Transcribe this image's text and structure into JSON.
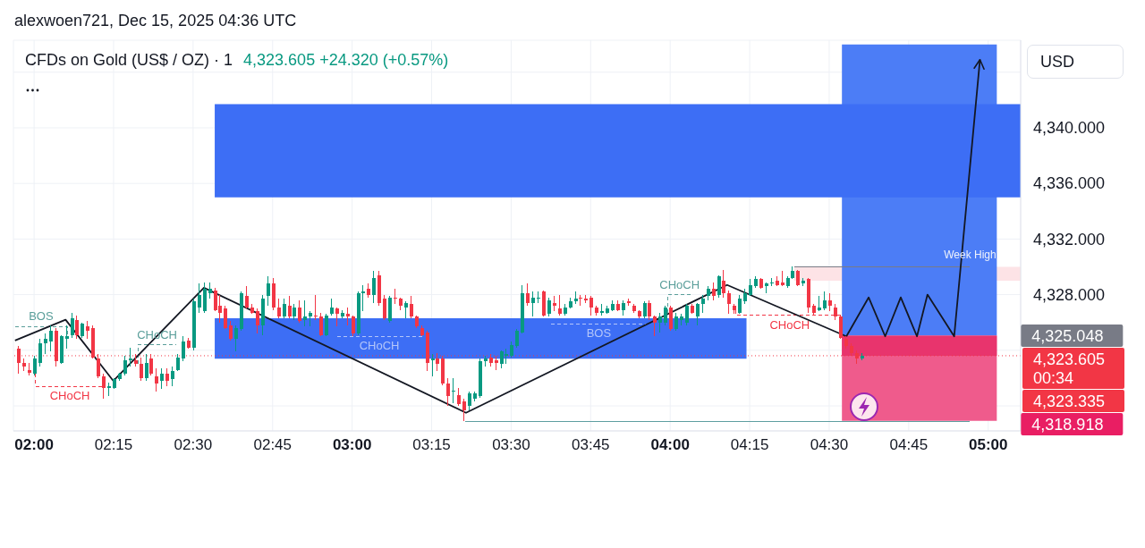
{
  "chart_data": {
    "type": "candlestick",
    "title": "CFDs on Gold (US$ / OZ) · 1",
    "subtitle": "4,323.605 +24.320 (+0.57%)",
    "ylabel": "USD",
    "annotations": [
      "alexwoen721, Dec 15, 2025 04:36 UTC",
      {
        "text": "4,325.048",
        "x": 5.027,
        "y": 4325.048
      },
      "4,323.335",
      {
        "text": "4,318.918",
        "x": 5.027,
        "y": 4318.918
      }
    ],
    "x": [
      1.95,
      1.9667,
      1.9833,
      2,
      2.0167,
      2.0333,
      2.05,
      2.0667,
      2.0833,
      2.1,
      2.1167,
      2.1333,
      2.15,
      2.1667,
      2.1833,
      2.2,
      2.2167,
      2.2333,
      2.25,
      2.2667,
      2.2833,
      2.3,
      2.3167,
      2.3333,
      2.35,
      2.3667,
      2.3833,
      2.4,
      2.4167,
      2.4333,
      2.45,
      2.4667,
      2.4833,
      2.5,
      2.5167,
      2.5333,
      2.55,
      2.5667,
      2.5833,
      2.6,
      2.6167,
      2.6333,
      2.65,
      2.6667,
      2.6833,
      2.7,
      2.7167,
      2.7333,
      2.75,
      2.7667,
      2.7833,
      2.8,
      2.8167,
      2.8333,
      2.85,
      2.8667,
      2.8833,
      2.9,
      2.9167,
      2.9333,
      2.95,
      2.9667,
      2.9833,
      3,
      3.0167,
      3.0333,
      3.05,
      3.0667,
      3.0833,
      3.1,
      3.1167,
      3.1333,
      3.15,
      3.1667,
      3.1833,
      3.2,
      3.2167,
      3.2333,
      3.25,
      3.2667,
      3.2833,
      3.3,
      3.3167,
      3.3333,
      3.35,
      3.3667,
      3.3833,
      3.4,
      3.4167,
      3.4333,
      3.45,
      3.4667,
      3.4833,
      3.5,
      3.5167,
      3.5333,
      3.55,
      3.5667,
      3.5833,
      3.6,
      3.6167,
      3.6333,
      3.65,
      3.6667,
      3.6833,
      3.7,
      3.7167,
      3.7333,
      3.75,
      3.7667,
      3.7833,
      3.8,
      3.8167,
      3.8333,
      3.85,
      3.8667,
      3.8833,
      3.9,
      3.9167,
      3.9333,
      3.95,
      3.9667,
      3.9833,
      4,
      4.0167,
      4.0333,
      4.05,
      4.0667,
      4.0833,
      4.1,
      4.1167,
      4.1333,
      4.15,
      4.1667,
      4.1833,
      4.2,
      4.2167,
      4.2333,
      4.25,
      4.2667,
      4.2833,
      4.3,
      4.3167,
      4.3333,
      4.35,
      4.3667,
      4.3833,
      4.4,
      4.4167,
      4.4333,
      4.45,
      4.4667,
      4.4833,
      4.5,
      4.5167,
      4.5333,
      4.55,
      4.5667,
      4.5833,
      4.6
    ],
    "ohlc": [
      [
        4324.1,
        4324.3,
        4322.3,
        4323.1
      ],
      [
        4323.1,
        4323.4,
        4322.5,
        4322.8
      ],
      [
        4322.6,
        4323.1,
        4322.2,
        4322.4
      ],
      [
        4322.3,
        4323.6,
        4322.2,
        4323.4
      ],
      [
        4323.1,
        4324.8,
        4322.8,
        4324.5
      ],
      [
        4324.5,
        4325.2,
        4323.7,
        4324.8
      ],
      [
        4324.6,
        4325.8,
        4323.9,
        4325.4
      ],
      [
        4325.4,
        4325.6,
        4322.8,
        4323.2
      ],
      [
        4323.1,
        4325.1,
        4323.0,
        4325.0
      ],
      [
        4324.8,
        4325.8,
        4324.1,
        4325.0
      ],
      [
        4325.1,
        4326.7,
        4324.9,
        4326.3
      ],
      [
        4326.2,
        4326.5,
        4324.8,
        4325.1
      ],
      [
        4325.0,
        4326.0,
        4324.9,
        4325.9
      ],
      [
        4325.7,
        4326.1,
        4324.8,
        4325.4
      ],
      [
        4325.6,
        4325.8,
        4323.4,
        4323.5
      ],
      [
        4323.4,
        4323.7,
        4322.0,
        4322.1
      ],
      [
        4322.1,
        4322.3,
        4320.5,
        4321.3
      ],
      [
        4321.3,
        4321.7,
        4320.7,
        4321.4
      ],
      [
        4321.3,
        4322.0,
        4321.2,
        4321.9
      ],
      [
        4321.9,
        4322.4,
        4321.8,
        4322.3
      ],
      [
        4322.3,
        4323.6,
        4322.2,
        4323.3
      ],
      [
        4323.3,
        4324.2,
        4322.8,
        4323.4
      ],
      [
        4323.3,
        4323.7,
        4322.8,
        4323.0
      ],
      [
        4323.0,
        4323.5,
        4321.8,
        4322.0
      ],
      [
        4322.0,
        4323.7,
        4321.8,
        4323.1
      ],
      [
        4323.4,
        4323.7,
        4322.2,
        4322.3
      ],
      [
        4322.1,
        4322.7,
        4321.0,
        4321.6
      ],
      [
        4321.8,
        4322.7,
        4321.2,
        4322.3
      ],
      [
        4322.3,
        4322.7,
        4321.4,
        4321.8
      ],
      [
        4321.9,
        4322.8,
        4321.4,
        4322.5
      ],
      [
        4322.6,
        4323.7,
        4322.5,
        4323.5
      ],
      [
        4323.4,
        4325.0,
        4323.2,
        4324.6
      ],
      [
        4324.7,
        4324.9,
        4324.1,
        4324.2
      ],
      [
        4324.2,
        4327.7,
        4324.0,
        4327.5
      ],
      [
        4327.1,
        4328.8,
        4326.7,
        4328.0
      ],
      [
        4326.8,
        4328.9,
        4326.7,
        4328.4
      ],
      [
        4328.1,
        4328.9,
        4327.7,
        4328.4
      ],
      [
        4328.3,
        4328.5,
        4326.8,
        4326.9
      ],
      [
        4327.2,
        4328.0,
        4326.0,
        4326.7
      ],
      [
        4327.0,
        4327.2,
        4325.5,
        4325.6
      ],
      [
        4325.8,
        4326.1,
        4324.7,
        4324.8
      ],
      [
        4324.8,
        4325.8,
        4323.9,
        4325.6
      ],
      [
        4325.5,
        4328.2,
        4325.4,
        4328.1
      ],
      [
        4327.9,
        4328.6,
        4327.0,
        4327.1
      ],
      [
        4327.1,
        4327.3,
        4326.6,
        4326.7
      ],
      [
        4326.8,
        4327.0,
        4325.2,
        4325.8
      ],
      [
        4325.8,
        4328.0,
        4325.1,
        4327.7
      ],
      [
        4327.9,
        4329.3,
        4327.2,
        4328.8
      ],
      [
        4328.8,
        4329.2,
        4326.9,
        4327.1
      ],
      [
        4327.1,
        4327.7,
        4326.3,
        4326.4
      ],
      [
        4326.4,
        4327.7,
        4326.3,
        4327.3
      ],
      [
        4327.2,
        4327.9,
        4326.3,
        4326.4
      ],
      [
        4326.4,
        4327.3,
        4326.2,
        4327.1
      ],
      [
        4327.1,
        4327.6,
        4326.0,
        4326.1
      ],
      [
        4326.2,
        4327.6,
        4325.7,
        4326.4
      ],
      [
        4326.4,
        4326.8,
        4325.7,
        4326.7
      ],
      [
        4326.5,
        4328.0,
        4326.2,
        4326.4
      ],
      [
        4326.4,
        4326.7,
        4325.0,
        4325.1
      ],
      [
        4325.1,
        4326.6,
        4325.0,
        4326.5
      ],
      [
        4326.6,
        4327.7,
        4326.5,
        4327.1
      ],
      [
        4327.0,
        4327.1,
        4325.7,
        4326.6
      ],
      [
        4326.4,
        4326.9,
        4326.3,
        4326.7
      ],
      [
        4326.6,
        4327.1,
        4325.8,
        4326.4
      ],
      [
        4326.4,
        4326.5,
        4325.0,
        4325.2
      ],
      [
        4325.2,
        4328.2,
        4325.1,
        4328.1
      ],
      [
        4328.1,
        4328.7,
        4326.8,
        4328.2
      ],
      [
        4328.4,
        4328.8,
        4327.8,
        4328.0
      ],
      [
        4328.0,
        4329.7,
        4327.4,
        4329.2
      ],
      [
        4329.4,
        4329.7,
        4327.2,
        4327.4
      ],
      [
        4327.7,
        4328.0,
        4326.2,
        4326.3
      ],
      [
        4326.1,
        4327.9,
        4326.0,
        4327.8
      ],
      [
        4327.8,
        4328.4,
        4327.3,
        4327.7
      ],
      [
        4327.7,
        4327.8,
        4326.9,
        4327.2
      ],
      [
        4327.1,
        4327.5,
        4326.3,
        4327.4
      ],
      [
        4327.3,
        4327.9,
        4326.3,
        4326.4
      ],
      [
        4326.4,
        4326.5,
        4325.6,
        4325.7
      ],
      [
        4325.6,
        4325.8,
        4325.0,
        4325.1
      ],
      [
        4325.3,
        4325.4,
        4322.5,
        4323.1
      ],
      [
        4323.3,
        4323.7,
        4322.1,
        4323.4
      ],
      [
        4323.4,
        4323.8,
        4322.5,
        4323.0
      ],
      [
        4323.4,
        4323.6,
        4321.5,
        4321.6
      ],
      [
        4321.6,
        4322.0,
        4320.0,
        4320.7
      ],
      [
        4321.0,
        4322.0,
        4320.2,
        4321.1
      ],
      [
        4320.8,
        4321.3,
        4320.0,
        4320.1
      ],
      [
        4320.3,
        4320.5,
        4318.9,
        4319.7
      ],
      [
        4320.0,
        4321.0,
        4319.7,
        4320.9
      ],
      [
        4320.5,
        4321.0,
        4320.3,
        4320.9
      ],
      [
        4320.7,
        4323.4,
        4320.6,
        4323.2
      ],
      [
        4323.2,
        4323.6,
        4322.8,
        4323.4
      ],
      [
        4323.5,
        4323.7,
        4322.8,
        4323.1
      ],
      [
        4323.3,
        4323.6,
        4322.6,
        4323.1
      ],
      [
        4323.0,
        4324.0,
        4322.7,
        4323.9
      ],
      [
        4323.6,
        4324.1,
        4323.0,
        4323.7
      ],
      [
        4323.6,
        4324.6,
        4323.5,
        4324.4
      ],
      [
        4324.3,
        4325.5,
        4324.2,
        4325.4
      ],
      [
        4325.3,
        4328.7,
        4325.2,
        4328.1
      ],
      [
        4328.1,
        4328.8,
        4327.2,
        4327.4
      ],
      [
        4327.4,
        4328.2,
        4326.4,
        4327.8
      ],
      [
        4327.7,
        4328.2,
        4327.4,
        4327.8
      ],
      [
        4328.2,
        4328.3,
        4326.4,
        4326.5
      ],
      [
        4326.6,
        4327.8,
        4326.4,
        4327.6
      ],
      [
        4327.4,
        4327.9,
        4326.8,
        4327.2
      ],
      [
        4327.0,
        4328.0,
        4326.5,
        4326.6
      ],
      [
        4326.6,
        4327.3,
        4326.5,
        4327.1
      ],
      [
        4327.1,
        4327.8,
        4327.0,
        4327.5
      ],
      [
        4327.5,
        4328.2,
        4327.3,
        4327.7
      ],
      [
        4327.8,
        4328.0,
        4327.2,
        4327.7
      ],
      [
        4327.7,
        4328.0,
        4327.4,
        4327.6
      ],
      [
        4327.8,
        4327.9,
        4326.5,
        4327.1
      ],
      [
        4327.1,
        4327.2,
        4326.5,
        4326.7
      ],
      [
        4326.7,
        4327.3,
        4326.5,
        4326.8
      ],
      [
        4326.7,
        4327.2,
        4326.6,
        4327.0
      ],
      [
        4326.9,
        4327.6,
        4326.8,
        4327.3
      ],
      [
        4327.3,
        4327.6,
        4326.8,
        4326.9
      ],
      [
        4326.9,
        4327.6,
        4326.5,
        4327.4
      ],
      [
        4327.5,
        4327.7,
        4327.2,
        4327.4
      ],
      [
        4327.2,
        4327.3,
        4326.7,
        4326.8
      ],
      [
        4326.8,
        4326.9,
        4326.3,
        4326.4
      ],
      [
        4326.4,
        4327.5,
        4326.3,
        4327.4
      ],
      [
        4327.4,
        4327.6,
        4326.2,
        4326.4
      ],
      [
        4326.4,
        4326.5,
        4325.0,
        4326.0
      ],
      [
        4326.0,
        4326.7,
        4325.3,
        4326.4
      ],
      [
        4326.0,
        4327.2,
        4325.8,
        4327.1
      ],
      [
        4327.1,
        4327.2,
        4325.4,
        4325.5
      ],
      [
        4325.5,
        4326.7,
        4325.4,
        4326.4
      ],
      [
        4326.2,
        4326.6,
        4325.8,
        4326.4
      ],
      [
        4326.0,
        4327.3,
        4325.8,
        4327.2
      ],
      [
        4327.2,
        4327.3,
        4326.6,
        4326.7
      ],
      [
        4326.4,
        4327.4,
        4325.8,
        4327.3
      ],
      [
        4327.3,
        4328.0,
        4326.7,
        4327.7
      ],
      [
        4327.9,
        4328.6,
        4327.6,
        4328.4
      ],
      [
        4328.4,
        4328.9,
        4327.6,
        4327.9
      ],
      [
        4328.0,
        4329.4,
        4327.8,
        4329.3
      ],
      [
        4329.0,
        4329.8,
        4327.8,
        4328.1
      ],
      [
        4328.1,
        4328.3,
        4326.6,
        4327.3
      ],
      [
        4327.2,
        4327.3,
        4326.6,
        4326.9
      ],
      [
        4326.7,
        4328.0,
        4326.6,
        4327.7
      ],
      [
        4327.5,
        4328.4,
        4327.3,
        4328.1
      ],
      [
        4328.0,
        4329.1,
        4327.9,
        4328.7
      ],
      [
        4328.6,
        4329.3,
        4328.5,
        4329.1
      ],
      [
        4329.1,
        4329.2,
        4328.4,
        4328.5
      ],
      [
        4328.6,
        4328.9,
        4328.1,
        4328.8
      ],
      [
        4328.8,
        4329.2,
        4328.6,
        4328.9
      ],
      [
        4329.0,
        4329.3,
        4328.6,
        4328.7
      ],
      [
        4328.9,
        4329.7,
        4328.6,
        4328.7
      ],
      [
        4328.6,
        4329.3,
        4328.5,
        4329.2
      ],
      [
        4329.2,
        4330.0,
        4329.1,
        4329.7
      ],
      [
        4329.7,
        4329.8,
        4328.6,
        4328.7
      ],
      [
        4328.8,
        4329.2,
        4328.6,
        4329.0
      ],
      [
        4329.1,
        4329.2,
        4326.7,
        4327.1
      ],
      [
        4327.2,
        4327.3,
        4326.5,
        4326.7
      ],
      [
        4326.9,
        4327.9,
        4326.8,
        4327.1
      ],
      [
        4327.0,
        4328.2,
        4326.9,
        4327.6
      ],
      [
        4327.6,
        4328.1,
        4326.8,
        4327.2
      ],
      [
        4327.1,
        4327.3,
        4326.2,
        4326.4
      ],
      [
        4326.4,
        4326.5,
        4324.8,
        4324.9
      ],
      [
        4324.8,
        4325.0,
        4324.1,
        4324.3
      ],
      [
        4324.3,
        4324.5,
        4323.6,
        4323.8
      ],
      [
        4323.8,
        4324.0,
        4323.0,
        4323.4
      ],
      [
        4323.4,
        4323.8,
        4323.3,
        4323.605
      ]
    ],
    "series": [
      {
        "type": "line",
        "color": "#fde3e6",
        "x": [
          4.39,
          5.102
        ],
        "values": [
          null,
          null
        ],
        "lower": [
          4329.0,
          4329.0
        ],
        "upper": [
          4330.0,
          4330.0
        ]
      },
      {
        "type": "line",
        "color": "#4c7df6",
        "x": [
          4.54,
          5.027
        ],
        "values": [
          null,
          null
        ],
        "lower": [
          4325.048,
          4325.048
        ],
        "upper": [
          4346.0,
          4346.0
        ]
      },
      {
        "type": "line",
        "color": "#ef5b8c",
        "x": [
          4.54,
          5.027
        ],
        "values": [
          null,
          null
        ],
        "lower": [
          4318.918,
          4318.918
        ],
        "upper": [
          4325.048,
          4325.048
        ]
      },
      {
        "type": "line",
        "color": "#e8346d",
        "x": [
          4.54,
          5.027
        ],
        "values": [
          null,
          null
        ],
        "lower": [
          4323.605,
          4323.605
        ],
        "upper": [
          4325.048,
          4325.048
        ]
      },
      {
        "type": "line",
        "color": "#3d6ef5",
        "x": [
          2.568,
          5.102
        ],
        "values": [
          null,
          null
        ],
        "lower": [
          4335.0,
          4335.0
        ],
        "upper": [
          4341.7,
          4341.7
        ]
      },
      {
        "type": "line",
        "color": "#3d6ef5",
        "x": [
          2.568,
          4.24
        ],
        "values": [
          null,
          null
        ],
        "lower": [
          4323.4,
          4323.4
        ],
        "upper": [
          4326.3,
          4326.3
        ]
      },
      {
        "type": "line",
        "name": "Week High",
        "color": "#787b86",
        "x": [
          4.39,
          4.943
        ],
        "values": [
          4330.0,
          4330.0
        ]
      },
      {
        "type": "line",
        "color": "#5e9ea0",
        "x": [
          3.355,
          4.943
        ],
        "values": [
          4318.9,
          4318.9
        ]
      },
      {
        "type": "line",
        "name": "BOS",
        "color": "#5a9e9a",
        "line_style": "dashed",
        "x": [
          1.94,
          2.104,
          2.104
        ],
        "values": [
          4325.7,
          4325.7,
          4325.1
        ]
      },
      {
        "type": "line",
        "name": "CHoCH",
        "color": "#f23645",
        "line_style": "dashed",
        "x": [
          2.004,
          2.004,
          2.221
        ],
        "values": [
          4322.3,
          4321.4,
          4321.4
        ]
      },
      {
        "type": "line",
        "name": "CHoCH",
        "color": "#5a9e9a",
        "line_style": "dashed",
        "x": [
          2.327,
          2.327,
          2.446
        ],
        "values": [
          4323.0,
          4324.4,
          4324.4
        ]
      },
      {
        "type": "line",
        "name": "CHoCH",
        "color": "#b4c6fa",
        "line_style": "dashed",
        "x": [
          2.952,
          3.219
        ],
        "values": [
          4325.0,
          4325.0
        ]
      },
      {
        "type": "line",
        "name": "BOS",
        "color": "#b4c6fa",
        "line_style": "dashed",
        "x": [
          3.626,
          3.925
        ],
        "values": [
          4325.9,
          4325.9
        ]
      },
      {
        "type": "line",
        "name": "CHoCH",
        "color": "#5a9e9a",
        "line_style": "dashed",
        "x": [
          3.992,
          3.992,
          4.067
        ],
        "values": [
          4326.7,
          4328.0,
          4328.0
        ]
      },
      {
        "type": "line",
        "name": "CHoCH",
        "color": "#f23645",
        "line_style": "dashed",
        "x": [
          4.207,
          4.207,
          4.545
        ],
        "values": [
          4326.9,
          4326.5,
          4326.5
        ]
      },
      {
        "type": "line",
        "color": "#131722",
        "x": [
          1.94,
          2.099,
          2.249,
          2.534,
          3.358,
          4.179,
          4.554
        ],
        "values": [
          4324.7,
          4326.2,
          4321.8,
          4328.5,
          4319.5,
          4328.7,
          4325.0
        ]
      },
      {
        "type": "line",
        "color": "#131722",
        "x": [
          4.554,
          4.624,
          4.676,
          4.725,
          4.776,
          4.809,
          4.893,
          4.974
        ],
        "values": [
          4325.0,
          4327.8,
          4325.0,
          4327.8,
          4325.0,
          4328.0,
          4325.0,
          4344.9
        ]
      }
    ],
    "xlim": [
      1.935,
      5.102
    ],
    "xticks": [
      {
        "value": 2,
        "label": "02:00"
      },
      {
        "value": 2.25,
        "label": "02:15"
      },
      {
        "value": 2.5,
        "label": "02:30"
      },
      {
        "value": 2.75,
        "label": "02:45"
      },
      {
        "value": 3,
        "label": "03:00"
      },
      {
        "value": 3.25,
        "label": "03:15"
      },
      {
        "value": 3.5,
        "label": "03:30"
      },
      {
        "value": 3.75,
        "label": "03:45"
      },
      {
        "value": 4,
        "label": "04:00"
      },
      {
        "value": 4.25,
        "label": "04:15"
      },
      {
        "value": 4.5,
        "label": "04:30"
      },
      {
        "value": 4.75,
        "label": "04:45"
      },
      {
        "value": 5,
        "label": "05:00"
      }
    ],
    "ylim": [
      4318.2,
      4346.3
    ],
    "yticks": [
      {
        "value": 4320,
        "label": null
      },
      {
        "value": 4324,
        "label": null
      },
      {
        "value": 4328,
        "label": "4,328.000"
      },
      {
        "value": 4332,
        "label": "4,332.000"
      },
      {
        "value": 4336,
        "label": "4,336.000"
      },
      {
        "value": 4340,
        "label": "4,340.000"
      },
      {
        "value": 4344,
        "label": null
      }
    ],
    "ref_lines": [
      {
        "axis": "y",
        "value": 4323.605,
        "label": "4,323.605\n00:34",
        "color": "#f23645",
        "line_style": "dotted"
      }
    ],
    "grid": true
  }
}
